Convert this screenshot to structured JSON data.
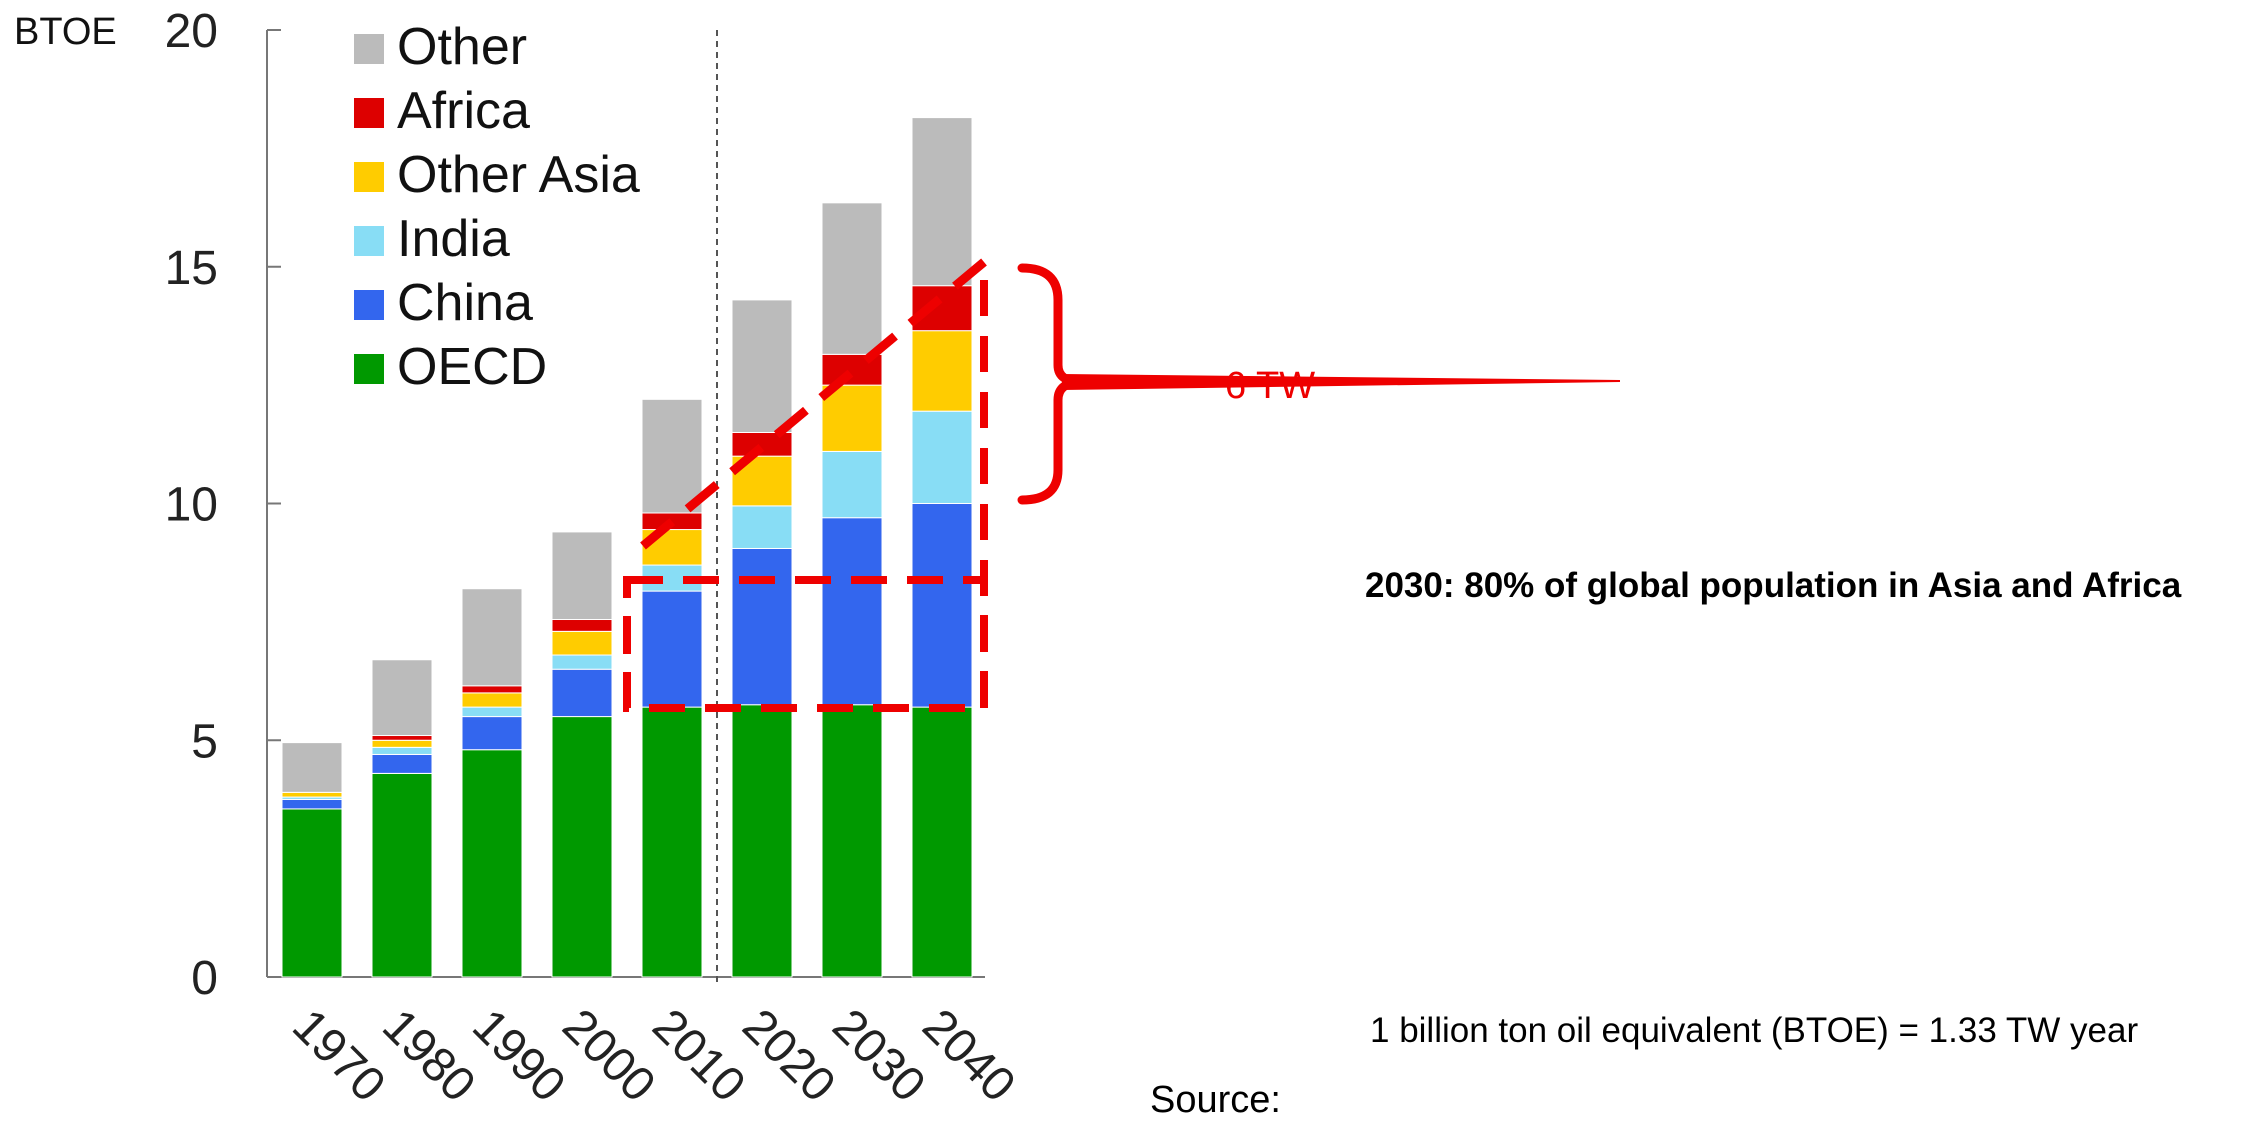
{
  "chart_data": {
    "type": "bar",
    "stacked": true,
    "ylabel": "BTOE",
    "ylim": [
      0,
      20
    ],
    "yticks": [
      0,
      5,
      10,
      15,
      20
    ],
    "categories": [
      "1970",
      "1980",
      "1990",
      "2000",
      "2010",
      "2020",
      "2030",
      "2040"
    ],
    "series": [
      {
        "name": "OECD",
        "color": "#009900",
        "values": [
          3.55,
          4.3,
          4.8,
          5.5,
          5.7,
          5.75,
          5.75,
          5.7
        ]
      },
      {
        "name": "China",
        "color": "#3366ee",
        "values": [
          0.2,
          0.4,
          0.7,
          1.0,
          2.45,
          3.3,
          3.95,
          4.3
        ]
      },
      {
        "name": "India",
        "color": "#88ddf5",
        "values": [
          0.05,
          0.15,
          0.2,
          0.3,
          0.55,
          0.9,
          1.4,
          1.95
        ]
      },
      {
        "name": "Other Asia",
        "color": "#ffcc00",
        "values": [
          0.1,
          0.15,
          0.3,
          0.5,
          0.75,
          1.05,
          1.4,
          1.7
        ]
      },
      {
        "name": "Africa",
        "color": "#dd0000",
        "values": [
          0.0,
          0.1,
          0.15,
          0.25,
          0.35,
          0.5,
          0.65,
          0.95
        ]
      },
      {
        "name": "Other",
        "color": "#bbbbbb",
        "values": [
          1.05,
          1.6,
          2.05,
          1.85,
          2.4,
          2.8,
          3.2,
          3.55
        ]
      }
    ],
    "legend": {
      "order": [
        "Other",
        "Africa",
        "Other Asia",
        "India",
        "China",
        "OECD"
      ],
      "position": "top-left"
    },
    "divider_after_category": "2010",
    "annotations": {
      "bracket_label": "6 TW",
      "highlight_color": "#ee0000"
    }
  },
  "notes": {
    "population": "2030: 80% of global population in Asia and Africa",
    "btoe": "1 billion ton oil equivalent (BTOE) = 1.33 TW year",
    "source": "Source:"
  }
}
